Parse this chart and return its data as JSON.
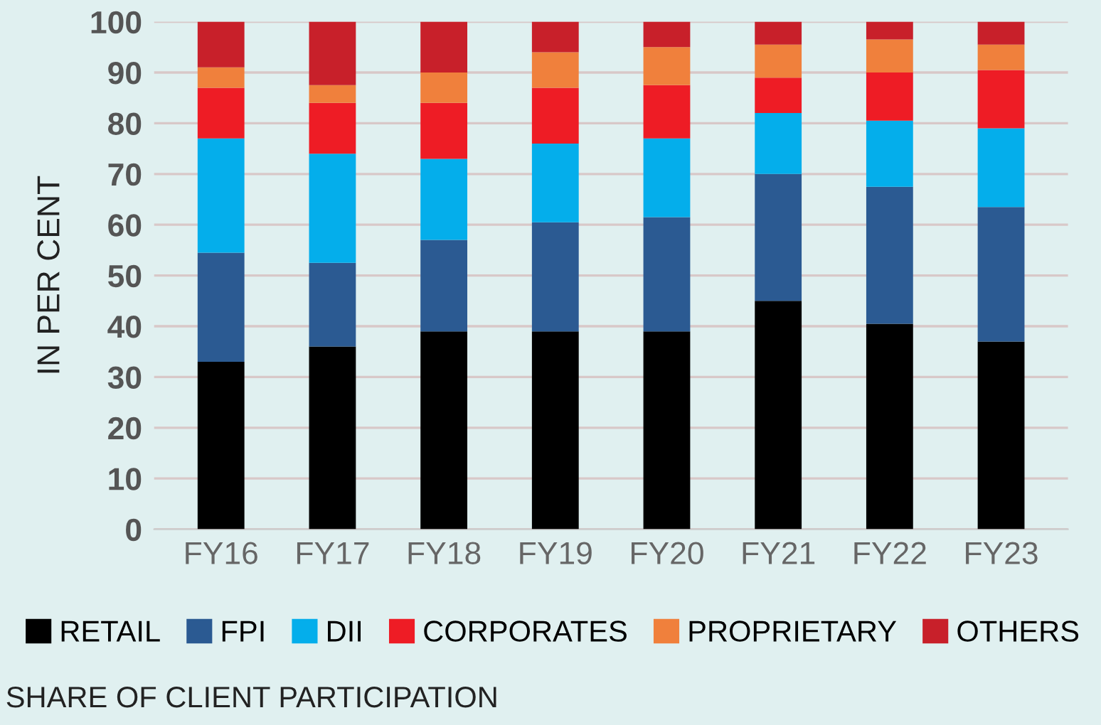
{
  "chart_data": {
    "type": "bar",
    "stacked": true,
    "ylabel": "IN PER CENT",
    "categories": [
      "FY16",
      "FY17",
      "FY18",
      "FY19",
      "FY20",
      "FY21",
      "FY22",
      "FY23"
    ],
    "series": [
      {
        "name": "RETAIL",
        "color": "#000000",
        "values": [
          33,
          36,
          39,
          39,
          39,
          45,
          40.5,
          37
        ]
      },
      {
        "name": "FPI",
        "color": "#2b5a92",
        "values": [
          21.5,
          16.5,
          18,
          21.5,
          22.5,
          25,
          27,
          26.5
        ]
      },
      {
        "name": "DII",
        "color": "#04aeeb",
        "values": [
          22.5,
          21.5,
          16,
          15.5,
          15.5,
          12,
          13,
          15.5
        ]
      },
      {
        "name": "CORPORATES",
        "color": "#ee1c25",
        "values": [
          10,
          10,
          11,
          11,
          10.5,
          7,
          9.5,
          11.5
        ]
      },
      {
        "name": "PROPRIETARY",
        "color": "#f0803c",
        "values": [
          4,
          3.5,
          6,
          7,
          7.5,
          6.5,
          6.5,
          5
        ]
      },
      {
        "name": "OTHERS",
        "color": "#c8202a",
        "values": [
          9,
          12.5,
          10,
          6,
          5,
          4.5,
          3.5,
          4.5
        ]
      }
    ],
    "ylim": [
      0,
      100
    ],
    "yticks": [
      0,
      10,
      20,
      30,
      40,
      50,
      60,
      70,
      80,
      90,
      100
    ],
    "grid": "y",
    "legend": "bottom",
    "annotations": [
      "SHARE OF CLIENT PARTICIPATION"
    ]
  }
}
